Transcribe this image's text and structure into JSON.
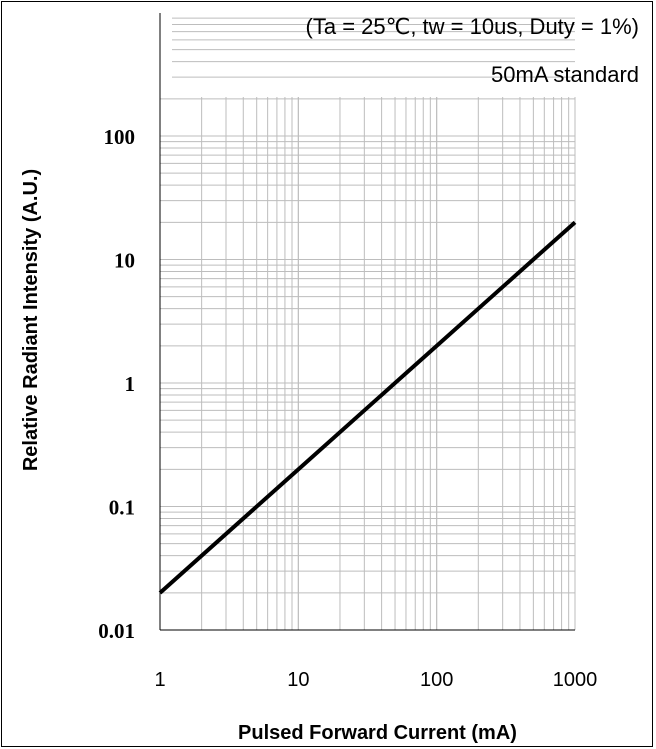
{
  "chart_data": {
    "type": "line",
    "x_scale": "log",
    "y_scale": "log",
    "xlim": [
      1,
      1000
    ],
    "ylim": [
      0.01,
      200
    ],
    "xticks": [
      "1",
      "10",
      "100",
      "1000"
    ],
    "yticks": [
      "0.01",
      "0.1",
      "1",
      "10",
      "100"
    ],
    "xlabel": "Pulsed Forward Current (mA)",
    "ylabel": "Relative Radiant Intensity (A.U.)",
    "annotations": [
      "(Ta = 25℃, tw = 10us, Duty = 1%)",
      "50mA standard"
    ],
    "grid": true,
    "series": [
      {
        "x": [
          1,
          10,
          100,
          1000
        ],
        "y": [
          0.02,
          0.2,
          2,
          20
        ]
      }
    ],
    "colors": {
      "line": "#000000",
      "grid": "#bdbdbd",
      "axis": "#000000"
    }
  }
}
